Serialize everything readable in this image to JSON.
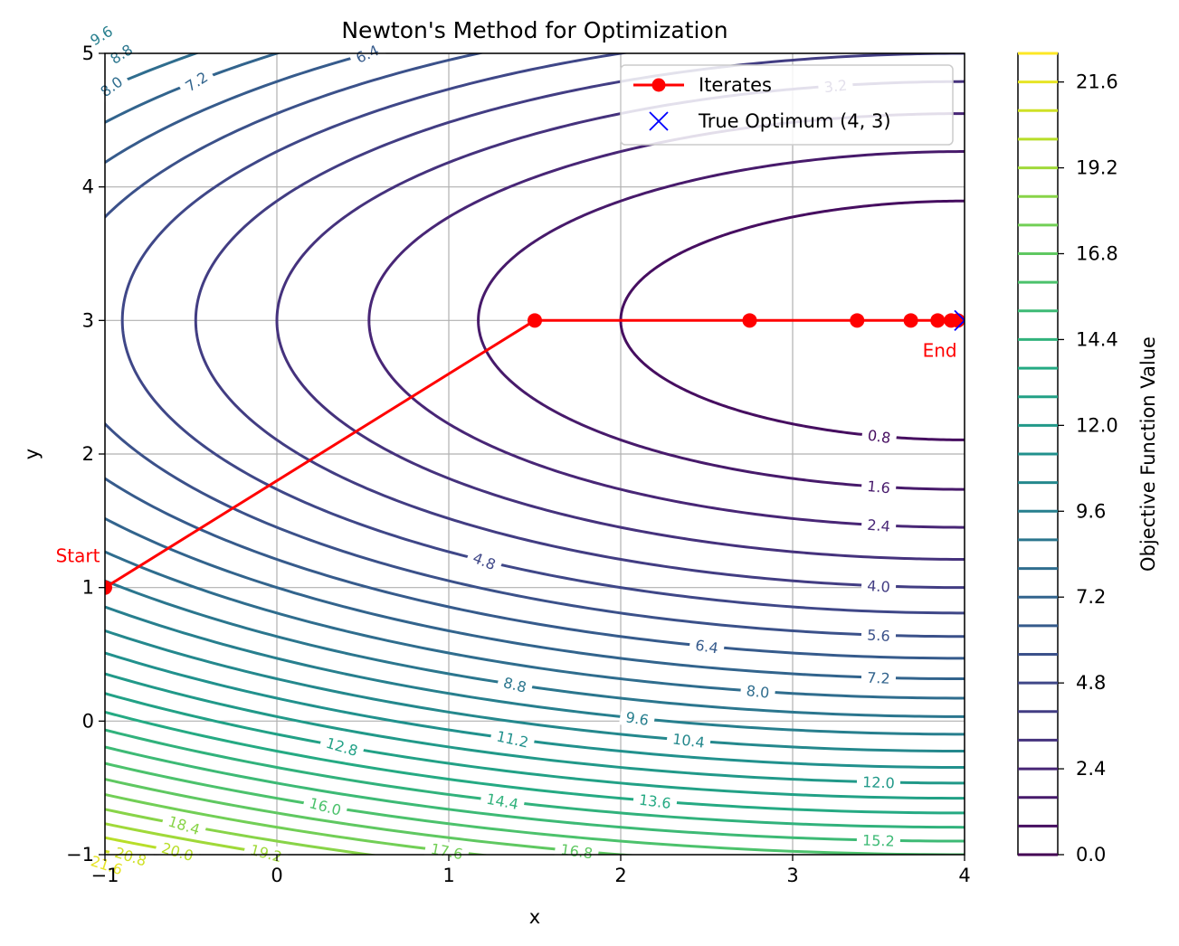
{
  "chart_data": {
    "type": "contour",
    "title": "Newton's Method for Optimization",
    "xlabel": "x",
    "ylabel": "y",
    "xlim": [
      -1,
      4
    ],
    "ylim": [
      -1,
      5
    ],
    "xticks": [
      "−1",
      "0",
      "1",
      "2",
      "3",
      "4"
    ],
    "yticks": [
      "−1",
      "0",
      "1",
      "2",
      "3",
      "4",
      "5"
    ],
    "grid": true,
    "function": "0.2*(x-4)^2 + (y-3)^2",
    "contour_levels": [
      0.8,
      1.6,
      2.4,
      3.2,
      4.0,
      4.8,
      5.6,
      6.4,
      7.2,
      8.0,
      8.8,
      9.6,
      10.4,
      11.2,
      12.0,
      12.8,
      13.6,
      14.4,
      15.2,
      16.0,
      16.8,
      17.6,
      18.4,
      19.2,
      20.0,
      20.8,
      21.6
    ],
    "contour_label_texts": [
      "0.8",
      "1.6",
      "2.4",
      "3.2",
      "4.0",
      "4.8",
      "5.6",
      "6.4",
      "7.2",
      "8.0",
      "8.8",
      "9.6",
      "10.4",
      "11.2",
      "12.0",
      "12.8",
      "13.6",
      "14.4",
      "15.2",
      "16.0",
      "16.8",
      "17.6",
      "18.4",
      "19.2",
      "20.0",
      "20.8",
      "21.6"
    ],
    "colormap": "viridis",
    "iterates": {
      "name": "Iterates",
      "color": "#ff0000",
      "x": [
        -1,
        1.5,
        2.75,
        3.375,
        3.6875,
        3.84375,
        3.921875,
        3.9609375
      ],
      "y": [
        1,
        3,
        3,
        3,
        3,
        3,
        3,
        3
      ]
    },
    "optimum": {
      "name": "True Optimum (4, 3)",
      "x": 4,
      "y": 3,
      "color": "#0000ff"
    },
    "annotations": [
      {
        "text": "Start",
        "x": -1,
        "y": 1
      },
      {
        "text": "End",
        "x": 3.9609375,
        "y": 3
      }
    ],
    "legend": {
      "placement": "upper right",
      "entries": [
        "Iterates",
        "True Optimum (4, 3)"
      ]
    },
    "colorbar": {
      "label": "Objective Function Value",
      "range": [
        0.0,
        22.4
      ],
      "ticks": [
        "0.0",
        "2.4",
        "4.8",
        "7.2",
        "9.6",
        "12.0",
        "14.4",
        "16.8",
        "19.2",
        "21.6"
      ]
    }
  }
}
